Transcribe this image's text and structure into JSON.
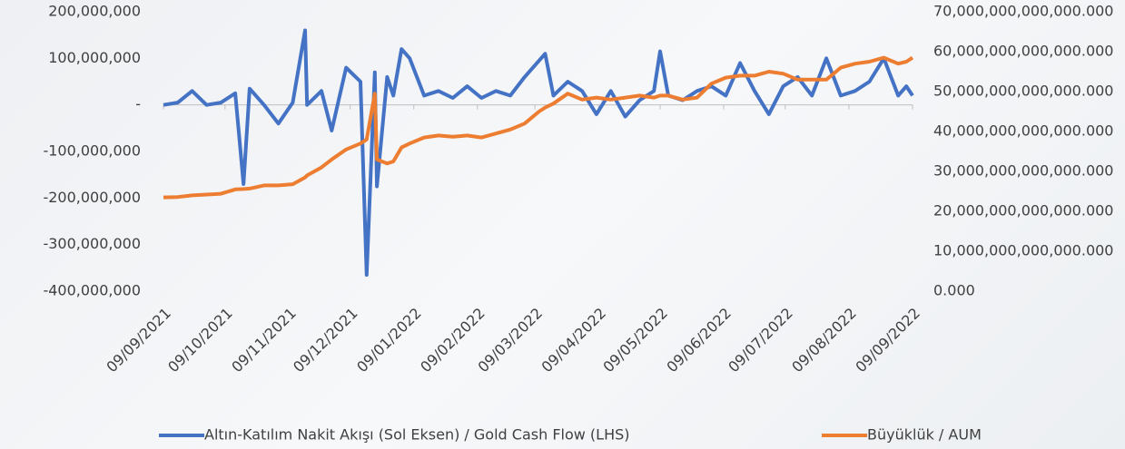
{
  "chart_data": {
    "type": "line",
    "x": [
      "09/09/2021",
      "16/09/2021",
      "23/09/2021",
      "30/09/2021",
      "07/10/2021",
      "14/10/2021",
      "18/10/2021",
      "21/10/2021",
      "28/10/2021",
      "04/11/2021",
      "11/11/2021",
      "17/11/2021",
      "18/11/2021",
      "25/11/2021",
      "30/11/2021",
      "07/12/2021",
      "14/12/2021",
      "17/12/2021",
      "21/12/2021",
      "22/12/2021",
      "27/12/2021",
      "30/12/2021",
      "03/01/2022",
      "07/01/2022",
      "14/01/2022",
      "21/01/2022",
      "28/01/2022",
      "04/02/2022",
      "11/02/2022",
      "18/02/2022",
      "25/02/2022",
      "04/03/2022",
      "11/03/2022",
      "14/03/2022",
      "18/03/2022",
      "25/03/2022",
      "01/04/2022",
      "08/04/2022",
      "15/04/2022",
      "22/04/2022",
      "29/04/2022",
      "06/05/2022",
      "09/05/2022",
      "13/05/2022",
      "20/05/2022",
      "27/05/2022",
      "03/06/2022",
      "10/06/2022",
      "17/06/2022",
      "24/06/2022",
      "01/07/2022",
      "08/07/2022",
      "15/07/2022",
      "22/07/2022",
      "29/07/2022",
      "05/08/2022",
      "12/08/2022",
      "19/08/2022",
      "26/08/2022",
      "02/09/2022",
      "06/09/2022",
      "09/09/2022"
    ],
    "series": [
      {
        "name": "Altın-Katılım Nakit Akışı (Sol Eksen) / Gold Cash Flow (LHS)",
        "color": "#4472c4",
        "values": [
          0,
          5000000,
          30000000,
          0,
          5000000,
          25000000,
          -170000000,
          35000000,
          0,
          -40000000,
          5000000,
          160000000,
          0,
          30000000,
          -55000000,
          80000000,
          50000000,
          -365000000,
          70000000,
          -175000000,
          60000000,
          20000000,
          120000000,
          100000000,
          20000000,
          30000000,
          15000000,
          40000000,
          15000000,
          30000000,
          20000000,
          60000000,
          95000000,
          110000000,
          20000000,
          50000000,
          30000000,
          -20000000,
          30000000,
          -25000000,
          10000000,
          30000000,
          115000000,
          20000000,
          10000000,
          30000000,
          40000000,
          20000000,
          90000000,
          30000000,
          -20000000,
          40000000,
          60000000,
          20000000,
          100000000,
          20000000,
          30000000,
          50000000,
          100000000,
          20000000,
          40000000,
          20000000
        ]
      },
      {
        "name": "Büyüklük / AUM",
        "color": "#ed7d31",
        "axis": "y2",
        "values": [
          23500000000000,
          23600000000000,
          24000000000000,
          24200000000000,
          24400000000000,
          25500000000000,
          25600000000000,
          25700000000000,
          26500000000000,
          26500000000000,
          26800000000000,
          28500000000000,
          29000000000000,
          31000000000000,
          33000000000000,
          35500000000000,
          37000000000000,
          38000000000000,
          49500000000000,
          33000000000000,
          32000000000000,
          32500000000000,
          36000000000000,
          37000000000000,
          38500000000000,
          39000000000000,
          38700000000000,
          39000000000000,
          38500000000000,
          39500000000000,
          40500000000000,
          42000000000000,
          45000000000000,
          46000000000000,
          47000000000000,
          49500000000000,
          48000000000000,
          48500000000000,
          48000000000000,
          48500000000000,
          49000000000000,
          48500000000000,
          49000000000000,
          49000000000000,
          48000000000000,
          48500000000000,
          52000000000000,
          53500000000000,
          54000000000000,
          54000000000000,
          55000000000000,
          54500000000000,
          53000000000000,
          53000000000000,
          53000000000000,
          56000000000000,
          57000000000000,
          57500000000000,
          58500000000000,
          57000000000000,
          57500000000000,
          58500000000000
        ]
      }
    ],
    "xlim": [
      "09/09/2021",
      "09/09/2022"
    ],
    "xticks": [
      "09/09/2021",
      "09/10/2021",
      "09/11/2021",
      "09/12/2021",
      "09/01/2022",
      "09/02/2022",
      "09/03/2022",
      "09/04/2022",
      "09/05/2022",
      "09/06/2022",
      "09/07/2022",
      "09/08/2022",
      "09/09/2022"
    ],
    "ylim": [
      -400000000,
      200000000
    ],
    "yticks": [
      {
        "value": -400000000,
        "label": "-400,000,000"
      },
      {
        "value": -300000000,
        "label": "-300,000,000"
      },
      {
        "value": -200000000,
        "label": "-200,000,000"
      },
      {
        "value": -100000000,
        "label": "-100,000,000"
      },
      {
        "value": 0,
        "label": "-"
      },
      {
        "value": 100000000,
        "label": "100,000,000"
      },
      {
        "value": 200000000,
        "label": "200,000,000"
      }
    ],
    "y2lim": [
      0,
      70000000000000
    ],
    "y2ticks": [
      {
        "value": 0,
        "label": "0.000"
      },
      {
        "value": 10000000000000,
        "label": "10,000,000,000,000.000"
      },
      {
        "value": 20000000000000,
        "label": "20,000,000,000,000.000"
      },
      {
        "value": 30000000000000,
        "label": "30,000,000,000,000.000"
      },
      {
        "value": 40000000000000,
        "label": "40,000,000,000,000.000"
      },
      {
        "value": 50000000000000,
        "label": "50,000,000,000,000.000"
      },
      {
        "value": 60000000000000,
        "label": "60,000,000,000,000.000"
      },
      {
        "value": 70000000000000,
        "label": "70,000,000,000,000.000"
      }
    ],
    "legend": "bottom"
  }
}
